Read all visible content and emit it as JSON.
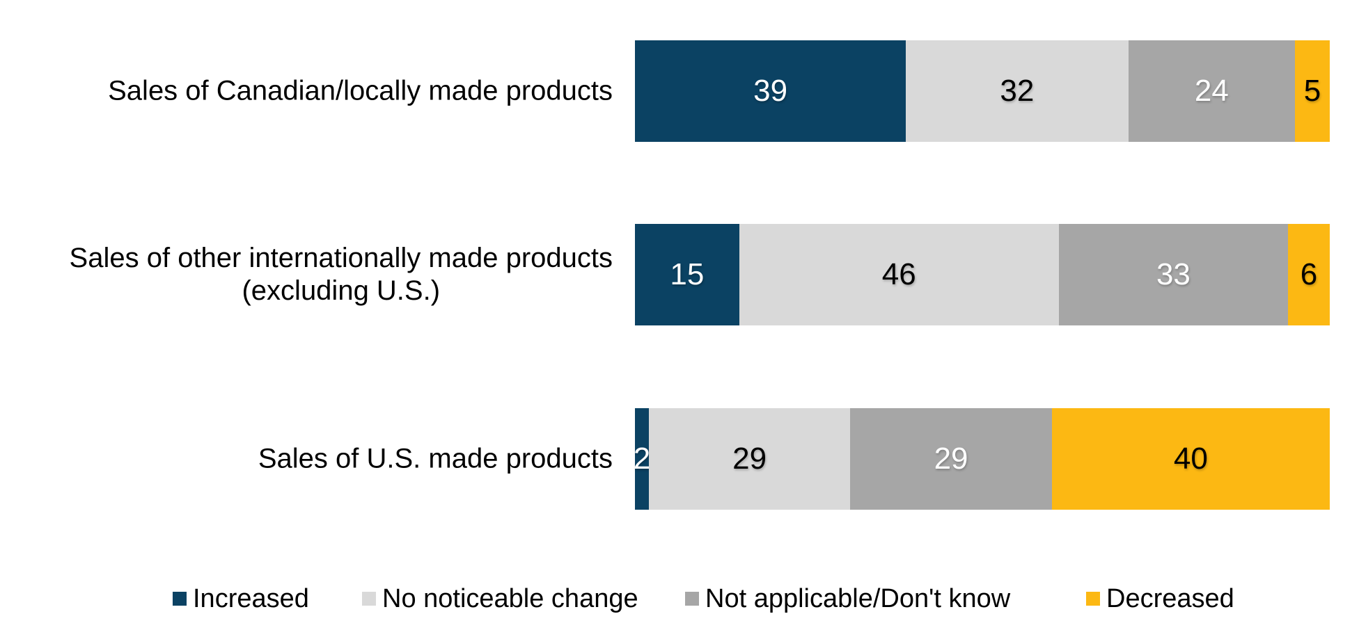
{
  "page": {
    "background": "#FFFFFF"
  },
  "chart_data": {
    "type": "bar",
    "orientation": "horizontal",
    "stacked": true,
    "unit": "percent",
    "xlim": [
      0,
      100
    ],
    "grid": false,
    "axes_visible": false,
    "value_labels": "inside-center",
    "legend_position": "bottom",
    "categories": [
      "Sales of Canadian/locally made products",
      "Sales of other internationally made products (excluding U.S.)",
      "Sales of U.S. made products"
    ],
    "category_display_lines": [
      [
        "Sales of Canadian/locally made products"
      ],
      [
        "Sales of other internationally made products",
        "(excluding U.S.)"
      ],
      [
        "Sales of U.S. made products"
      ]
    ],
    "series": [
      {
        "name": "Increased",
        "color": "#0B4263",
        "label_color": "#FFFFFF",
        "values": [
          39,
          15,
          2
        ]
      },
      {
        "name": "No noticeable change",
        "color": "#D9D9D9",
        "label_color": "#000000",
        "values": [
          32,
          46,
          29
        ]
      },
      {
        "name": "Not applicable/Don't know",
        "color": "#A6A6A6",
        "label_color": "#FFFFFF",
        "values": [
          24,
          33,
          29
        ]
      },
      {
        "name": "Decreased",
        "color": "#FCB813",
        "label_color": "#000000",
        "values": [
          5,
          6,
          40
        ]
      }
    ]
  },
  "legend": {
    "items": [
      {
        "label": "Increased",
        "color": "#0B4263"
      },
      {
        "label": "No noticeable change",
        "color": "#D9D9D9"
      },
      {
        "label": "Not applicable/Don't know",
        "color": "#A6A6A6"
      },
      {
        "label": "Decreased",
        "color": "#FCB813"
      }
    ]
  }
}
